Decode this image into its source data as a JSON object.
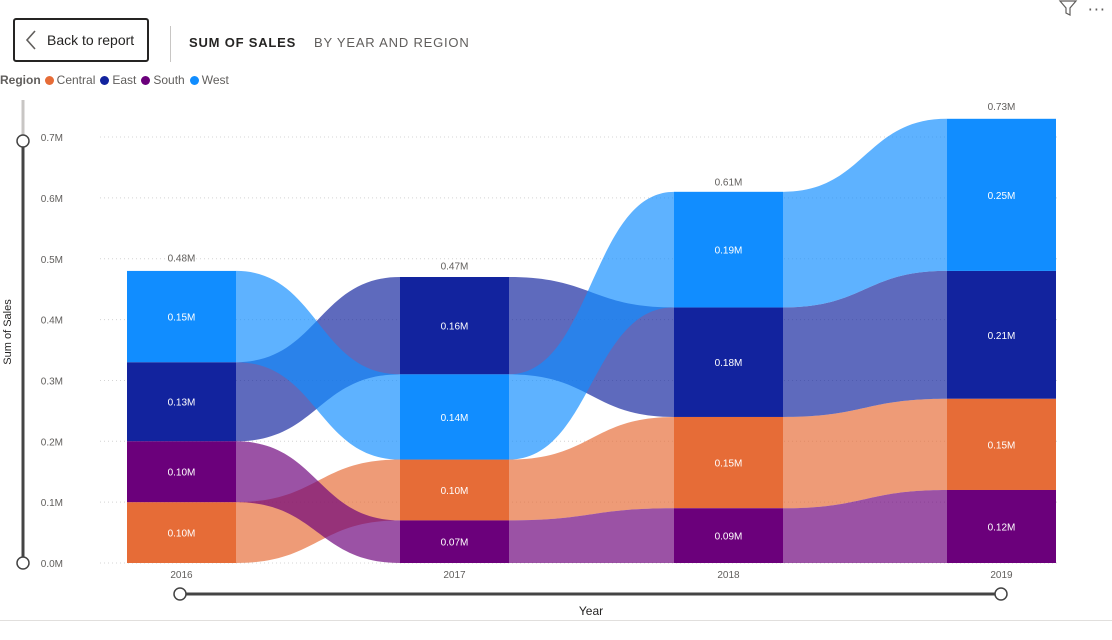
{
  "header": {
    "back_label": "Back to report",
    "title": "SUM OF SALES",
    "subtitle": "BY YEAR AND REGION"
  },
  "icons": {
    "filter": "filter-icon",
    "more": "more-options-icon",
    "back": "chevron-left-icon"
  },
  "legend": {
    "title": "Region",
    "items": [
      {
        "name": "Central",
        "color": "#E66C37"
      },
      {
        "name": "East",
        "color": "#12239E"
      },
      {
        "name": "South",
        "color": "#6B007B"
      },
      {
        "name": "West",
        "color": "#118DFF"
      }
    ]
  },
  "chart_data": {
    "type": "ribbon",
    "title": "SUM OF SALES BY YEAR AND REGION",
    "xlabel": "Year",
    "ylabel": "Sum of Sales",
    "categories": [
      "2016",
      "2017",
      "2018",
      "2019"
    ],
    "yticks": [
      "0.0M",
      "0.1M",
      "0.2M",
      "0.3M",
      "0.4M",
      "0.5M",
      "0.6M",
      "0.7M"
    ],
    "ylim": [
      0,
      0.7
    ],
    "grid": true,
    "legend_position": "top-left",
    "totals": [
      {
        "value": 0.484,
        "label": "0.48M"
      },
      {
        "value": 0.471,
        "label": "0.47M"
      },
      {
        "value": 0.609,
        "label": "0.61M"
      },
      {
        "value": 0.733,
        "label": "0.73M"
      }
    ],
    "series": [
      {
        "name": "Central",
        "color": "#E66C37",
        "values": [
          0.1,
          0.1,
          0.15,
          0.15
        ],
        "labels": [
          "0.10M",
          "0.10M",
          "0.15M",
          "0.15M"
        ]
      },
      {
        "name": "East",
        "color": "#12239E",
        "values": [
          0.13,
          0.16,
          0.18,
          0.21
        ],
        "labels": [
          "0.13M",
          "0.16M",
          "0.18M",
          "0.21M"
        ]
      },
      {
        "name": "South",
        "color": "#6B007B",
        "values": [
          0.1,
          0.07,
          0.09,
          0.12
        ],
        "labels": [
          "0.10M",
          "0.07M",
          "0.09M",
          "0.12M"
        ]
      },
      {
        "name": "West",
        "color": "#118DFF",
        "values": [
          0.15,
          0.14,
          0.19,
          0.25
        ],
        "labels": [
          "0.15M",
          "0.14M",
          "0.19M",
          "0.25M"
        ]
      }
    ],
    "stack_order_bottom_to_top": [
      [
        "Central",
        "South",
        "East",
        "West"
      ],
      [
        "South",
        "Central",
        "West",
        "East"
      ],
      [
        "South",
        "Central",
        "East",
        "West"
      ],
      [
        "South",
        "Central",
        "East",
        "West"
      ]
    ]
  }
}
